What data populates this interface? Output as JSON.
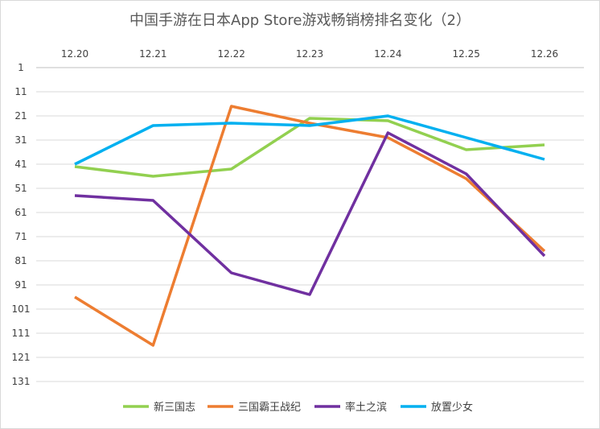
{
  "chart_data": {
    "type": "line",
    "title": "中国手游在日本App Store游戏畅销榜排名变化（2）",
    "xlabel": "",
    "ylabel": "",
    "categories": [
      "12.20",
      "12.21",
      "12.22",
      "12.23",
      "12.24",
      "12.25",
      "12.26"
    ],
    "y_ticks": [
      1,
      11,
      21,
      31,
      41,
      51,
      61,
      71,
      81,
      91,
      101,
      111,
      121,
      131
    ],
    "ylim": [
      1,
      131
    ],
    "y_inverted": true,
    "x_axis_position": "top",
    "grid": true,
    "legend": "bottom",
    "series": [
      {
        "name": "新三国志",
        "color": "#92d050",
        "values": [
          42,
          46,
          43,
          22,
          23,
          35,
          33
        ]
      },
      {
        "name": "三国霸王战纪",
        "color": "#ed7d31",
        "values": [
          96,
          116,
          17,
          24,
          30,
          47,
          77
        ]
      },
      {
        "name": "率土之滨",
        "color": "#7030a0",
        "values": [
          54,
          56,
          86,
          95,
          28,
          45,
          79
        ]
      },
      {
        "name": "放置少女",
        "color": "#00b0f0",
        "values": [
          41,
          25,
          24,
          25,
          21,
          30,
          39
        ]
      }
    ]
  }
}
